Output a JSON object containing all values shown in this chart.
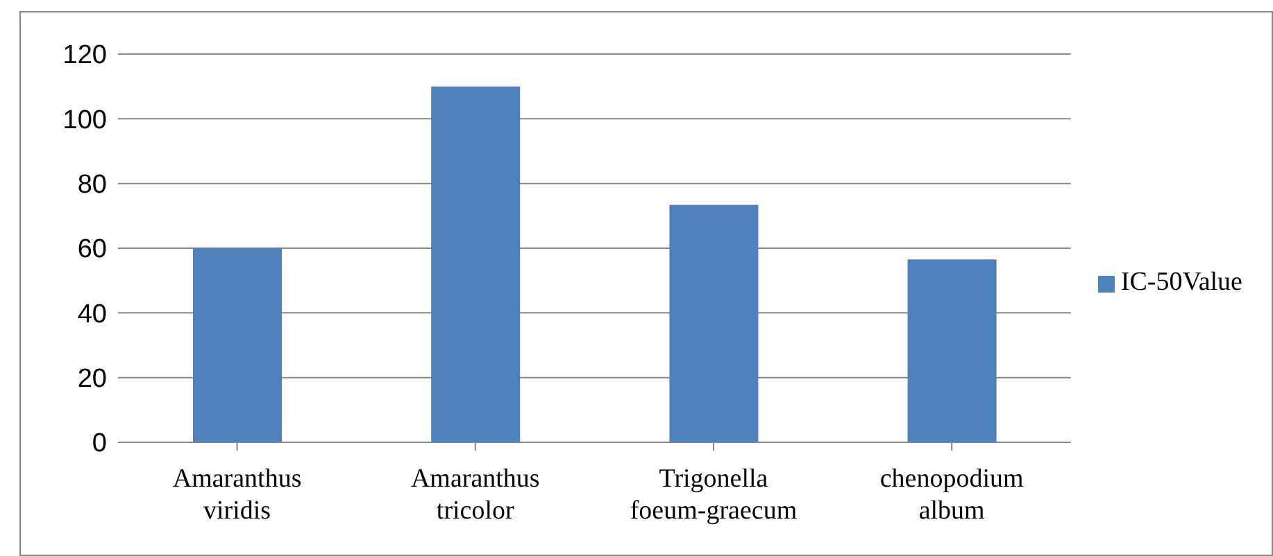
{
  "chart_data": {
    "type": "bar",
    "categories": [
      "Amaranthus viridis",
      "Amaranthus tricolor",
      "Trigonella foeum-graecum",
      "chenopodium album"
    ],
    "series": [
      {
        "name": "IC-50Value",
        "color": "#4f81bd",
        "values": [
          60,
          110,
          73.4,
          56.5
        ]
      }
    ],
    "ylim": [
      0,
      120
    ],
    "yticks": [
      0,
      20,
      40,
      60,
      80,
      100,
      120
    ],
    "grid": "y",
    "legend": "right"
  }
}
